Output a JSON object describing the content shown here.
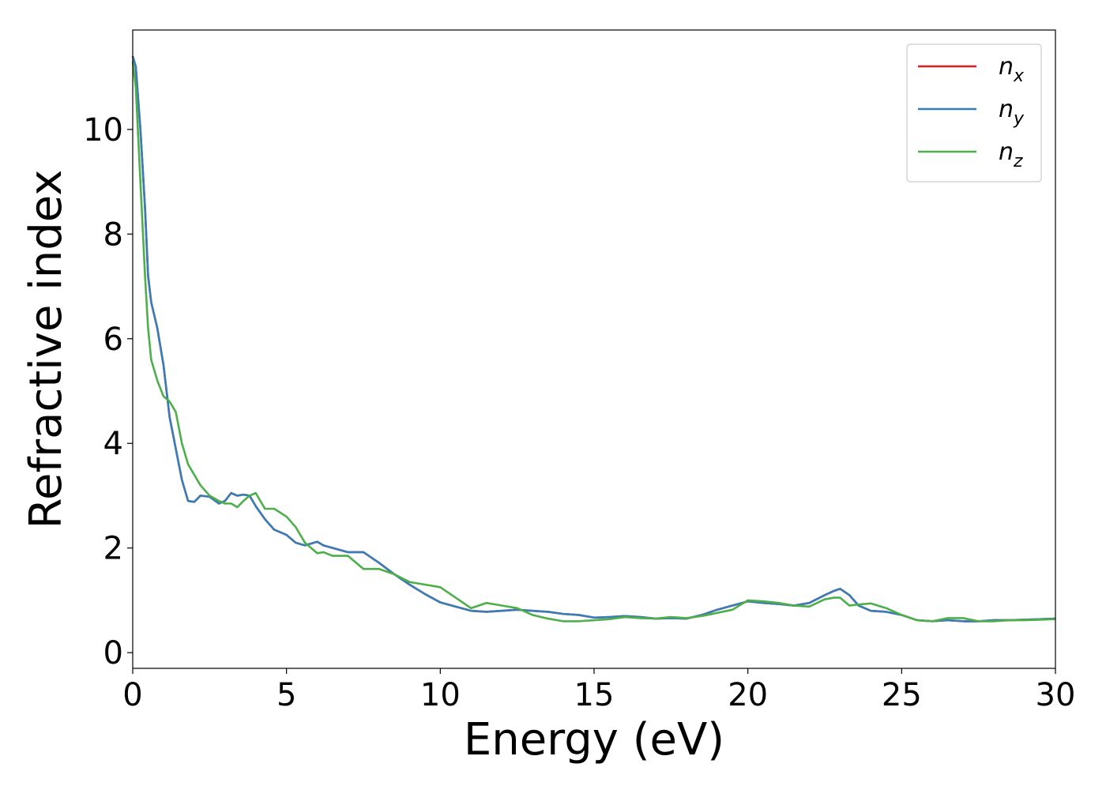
{
  "chart_data": {
    "type": "line",
    "title": "",
    "xlabel": "Energy (eV)",
    "ylabel": "Refractive index",
    "xlim": [
      0,
      30
    ],
    "ylim": [
      -0.3,
      11.9
    ],
    "xticks": [
      0,
      5,
      10,
      15,
      20,
      25,
      30
    ],
    "yticks": [
      0,
      2,
      4,
      6,
      8,
      10
    ],
    "grid": false,
    "legend_position": "top-right",
    "series": [
      {
        "name": "n_x",
        "legend": {
          "base": "n",
          "sub": "x"
        },
        "color": "#e41a1c",
        "x": [
          0,
          0.1,
          0.25,
          0.4,
          0.5,
          0.6,
          0.8,
          1.0,
          1.2,
          1.4,
          1.6,
          1.8,
          2.0,
          2.2,
          2.5,
          2.8,
          3.0,
          3.2,
          3.4,
          3.6,
          3.8,
          4.0,
          4.3,
          4.6,
          5.0,
          5.3,
          5.6,
          6.0,
          6.2,
          6.5,
          7.0,
          7.5,
          8.0,
          8.5,
          9.0,
          9.5,
          10.0,
          10.5,
          11.0,
          11.5,
          12.0,
          12.5,
          13.0,
          13.5,
          14.0,
          14.5,
          15.0,
          15.5,
          16.0,
          16.5,
          17.0,
          17.5,
          18.0,
          18.5,
          19.0,
          19.5,
          20.0,
          20.5,
          21.0,
          21.5,
          22.0,
          22.5,
          22.8,
          23.0,
          23.3,
          23.6,
          24.0,
          24.5,
          25.0,
          25.5,
          26.0,
          26.5,
          27.0,
          27.5,
          28.0,
          28.5,
          29.0,
          29.5,
          30.0
        ],
        "y": [
          11.4,
          11.2,
          10.0,
          8.5,
          7.2,
          6.7,
          6.2,
          5.5,
          4.5,
          3.9,
          3.3,
          2.9,
          2.88,
          3.0,
          2.98,
          2.85,
          2.9,
          3.05,
          3.0,
          3.02,
          3.0,
          2.8,
          2.55,
          2.35,
          2.25,
          2.1,
          2.05,
          2.12,
          2.05,
          2.0,
          1.92,
          1.92,
          1.72,
          1.5,
          1.3,
          1.12,
          0.96,
          0.88,
          0.8,
          0.78,
          0.8,
          0.82,
          0.8,
          0.78,
          0.74,
          0.72,
          0.67,
          0.68,
          0.7,
          0.68,
          0.65,
          0.66,
          0.65,
          0.72,
          0.82,
          0.9,
          0.98,
          0.95,
          0.93,
          0.9,
          0.95,
          1.1,
          1.18,
          1.22,
          1.1,
          0.9,
          0.8,
          0.78,
          0.72,
          0.62,
          0.6,
          0.62,
          0.6,
          0.6,
          0.62,
          0.62,
          0.63,
          0.64,
          0.65
        ]
      },
      {
        "name": "n_y",
        "legend": {
          "base": "n",
          "sub": "y"
        },
        "color": "#377eb8",
        "x": [
          0,
          0.1,
          0.25,
          0.4,
          0.5,
          0.6,
          0.8,
          1.0,
          1.2,
          1.4,
          1.6,
          1.8,
          2.0,
          2.2,
          2.5,
          2.8,
          3.0,
          3.2,
          3.4,
          3.6,
          3.8,
          4.0,
          4.3,
          4.6,
          5.0,
          5.3,
          5.6,
          6.0,
          6.2,
          6.5,
          7.0,
          7.5,
          8.0,
          8.5,
          9.0,
          9.5,
          10.0,
          10.5,
          11.0,
          11.5,
          12.0,
          12.5,
          13.0,
          13.5,
          14.0,
          14.5,
          15.0,
          15.5,
          16.0,
          16.5,
          17.0,
          17.5,
          18.0,
          18.5,
          19.0,
          19.5,
          20.0,
          20.5,
          21.0,
          21.5,
          22.0,
          22.5,
          22.8,
          23.0,
          23.3,
          23.6,
          24.0,
          24.5,
          25.0,
          25.5,
          26.0,
          26.5,
          27.0,
          27.5,
          28.0,
          28.5,
          29.0,
          29.5,
          30.0
        ],
        "y": [
          11.4,
          11.2,
          10.0,
          8.5,
          7.2,
          6.7,
          6.2,
          5.5,
          4.5,
          3.9,
          3.3,
          2.9,
          2.88,
          3.0,
          2.98,
          2.85,
          2.9,
          3.05,
          3.0,
          3.02,
          3.0,
          2.8,
          2.55,
          2.35,
          2.25,
          2.1,
          2.05,
          2.12,
          2.05,
          2.0,
          1.92,
          1.92,
          1.72,
          1.5,
          1.3,
          1.12,
          0.96,
          0.88,
          0.8,
          0.78,
          0.8,
          0.82,
          0.8,
          0.78,
          0.74,
          0.72,
          0.67,
          0.68,
          0.7,
          0.68,
          0.65,
          0.66,
          0.65,
          0.72,
          0.82,
          0.9,
          0.98,
          0.95,
          0.93,
          0.9,
          0.95,
          1.1,
          1.18,
          1.22,
          1.1,
          0.9,
          0.8,
          0.78,
          0.72,
          0.62,
          0.6,
          0.62,
          0.6,
          0.6,
          0.62,
          0.62,
          0.63,
          0.64,
          0.65
        ]
      },
      {
        "name": "n_z",
        "legend": {
          "base": "n",
          "sub": "z"
        },
        "color": "#4daf4a",
        "x": [
          0,
          0.1,
          0.25,
          0.4,
          0.5,
          0.6,
          0.8,
          1.0,
          1.2,
          1.4,
          1.6,
          1.8,
          2.0,
          2.2,
          2.5,
          2.8,
          3.0,
          3.2,
          3.4,
          3.6,
          3.8,
          4.0,
          4.3,
          4.6,
          5.0,
          5.3,
          5.6,
          6.0,
          6.2,
          6.5,
          7.0,
          7.5,
          8.0,
          8.5,
          9.0,
          9.5,
          10.0,
          10.5,
          11.0,
          11.5,
          12.0,
          12.5,
          13.0,
          13.5,
          14.0,
          14.5,
          15.0,
          15.5,
          16.0,
          16.5,
          17.0,
          17.5,
          18.0,
          18.5,
          19.0,
          19.5,
          20.0,
          20.5,
          21.0,
          21.5,
          22.0,
          22.5,
          22.8,
          23.0,
          23.3,
          23.6,
          24.0,
          24.5,
          25.0,
          25.5,
          26.0,
          26.5,
          27.0,
          27.5,
          28.0,
          28.5,
          29.0,
          29.5,
          30.0
        ],
        "y": [
          11.3,
          10.8,
          9.0,
          7.2,
          6.2,
          5.6,
          5.2,
          4.9,
          4.8,
          4.6,
          4.0,
          3.6,
          3.4,
          3.2,
          3.0,
          2.9,
          2.85,
          2.85,
          2.78,
          2.9,
          3.0,
          3.05,
          2.75,
          2.75,
          2.6,
          2.4,
          2.1,
          1.9,
          1.92,
          1.85,
          1.85,
          1.6,
          1.6,
          1.5,
          1.35,
          1.3,
          1.25,
          1.05,
          0.85,
          0.95,
          0.9,
          0.85,
          0.72,
          0.65,
          0.6,
          0.6,
          0.62,
          0.64,
          0.68,
          0.66,
          0.65,
          0.68,
          0.66,
          0.7,
          0.76,
          0.82,
          1.0,
          0.98,
          0.95,
          0.9,
          0.88,
          1.02,
          1.05,
          1.05,
          0.9,
          0.92,
          0.94,
          0.85,
          0.72,
          0.62,
          0.6,
          0.66,
          0.66,
          0.6,
          0.6,
          0.62,
          0.62,
          0.63,
          0.64
        ]
      }
    ]
  }
}
